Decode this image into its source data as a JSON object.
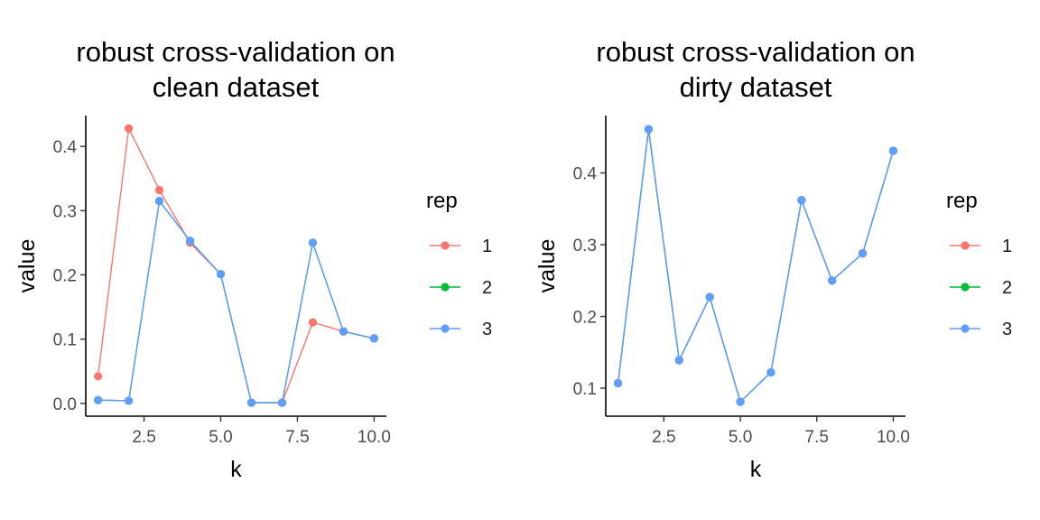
{
  "legend": {
    "title": "rep",
    "entries": [
      {
        "label": "1",
        "color": "#F8766D"
      },
      {
        "label": "2",
        "color": "#00BA38"
      },
      {
        "label": "3",
        "color": "#619CFF"
      }
    ]
  },
  "chart_data": [
    {
      "type": "line",
      "title": [
        "robust cross-validation on",
        "clean dataset"
      ],
      "xlabel": "k",
      "ylabel": "value",
      "xlim": [
        0.6,
        10.4
      ],
      "ylim": [
        -0.02,
        0.448
      ],
      "xticks": [
        2.5,
        5.0,
        7.5,
        10.0
      ],
      "xtick_labels": [
        "2.5",
        "5.0",
        "7.5",
        "10.0"
      ],
      "yticks": [
        0.0,
        0.1,
        0.2,
        0.3,
        0.4
      ],
      "ytick_labels": [
        "0.0",
        "0.1",
        "0.2",
        "0.3",
        "0.4"
      ],
      "grid": false,
      "legend_position": "right",
      "x": [
        1,
        2,
        3,
        4,
        5,
        6,
        7,
        8,
        9,
        10
      ],
      "series": [
        {
          "name": "1",
          "color": "#F8766D",
          "values": [
            0.042,
            0.428,
            0.332,
            0.25,
            0.201,
            0.001,
            0.001,
            0.126,
            0.112,
            0.101
          ]
        },
        {
          "name": "2",
          "color": "#00BA38",
          "values": [
            0.005,
            0.004,
            0.315,
            0.253,
            0.201,
            0.001,
            0.001,
            0.25,
            0.112,
            0.101
          ]
        },
        {
          "name": "3",
          "color": "#619CFF",
          "values": [
            0.005,
            0.004,
            0.315,
            0.253,
            0.201,
            0.001,
            0.001,
            0.25,
            0.112,
            0.101
          ]
        }
      ]
    },
    {
      "type": "line",
      "title": [
        "robust cross-validation on",
        "dirty dataset"
      ],
      "xlabel": "k",
      "ylabel": "value",
      "xlim": [
        0.6,
        10.4
      ],
      "ylim": [
        0.061,
        0.48
      ],
      "xticks": [
        2.5,
        5.0,
        7.5,
        10.0
      ],
      "xtick_labels": [
        "2.5",
        "5.0",
        "7.5",
        "10.0"
      ],
      "yticks": [
        0.1,
        0.2,
        0.3,
        0.4
      ],
      "ytick_labels": [
        "0.1",
        "0.2",
        "0.3",
        "0.4"
      ],
      "grid": false,
      "legend_position": "right",
      "x": [
        1,
        2,
        3,
        4,
        5,
        6,
        7,
        8,
        9,
        10
      ],
      "series": [
        {
          "name": "1",
          "color": "#F8766D",
          "values": [
            0.107,
            0.461,
            0.139,
            0.227,
            0.081,
            0.122,
            0.362,
            0.25,
            0.288,
            0.431
          ]
        },
        {
          "name": "2",
          "color": "#00BA38",
          "values": [
            0.107,
            0.461,
            0.139,
            0.227,
            0.081,
            0.122,
            0.362,
            0.25,
            0.288,
            0.431
          ]
        },
        {
          "name": "3",
          "color": "#619CFF",
          "values": [
            0.107,
            0.461,
            0.139,
            0.227,
            0.081,
            0.122,
            0.362,
            0.25,
            0.288,
            0.431
          ]
        }
      ]
    }
  ]
}
